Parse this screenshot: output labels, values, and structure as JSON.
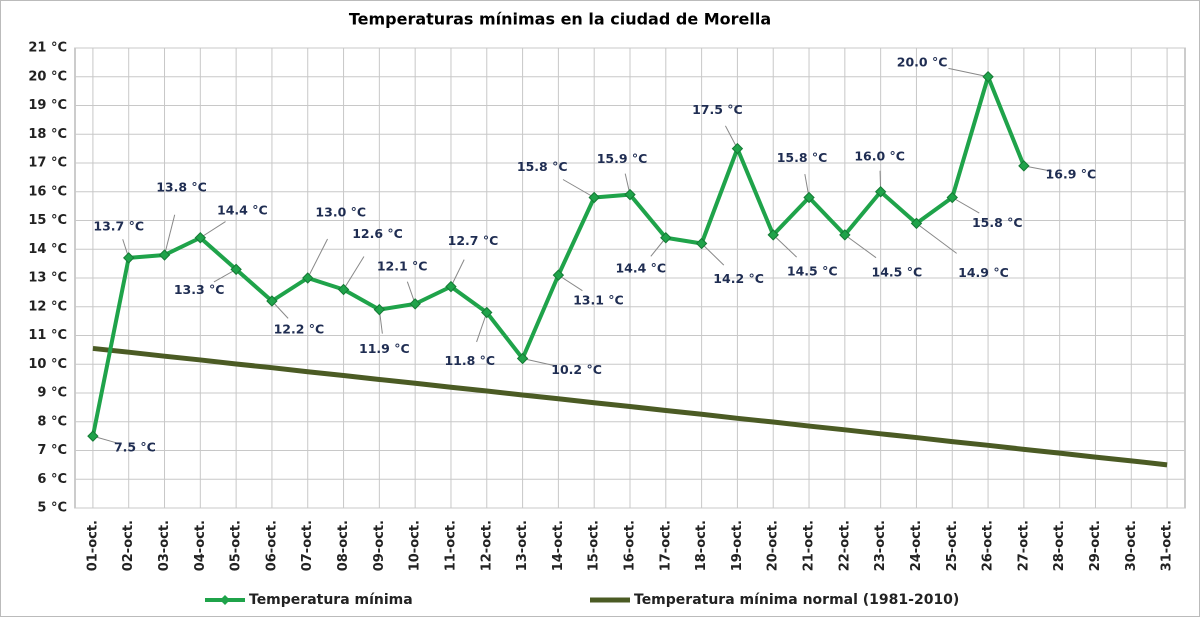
{
  "chart_data": {
    "type": "line",
    "title": "Temperaturas mínimas en la ciudad de Morella",
    "categories": [
      "01-oct.",
      "02-oct.",
      "03-oct.",
      "04-oct.",
      "05-oct.",
      "06-oct.",
      "07-oct.",
      "08-oct.",
      "09-oct.",
      "10-oct.",
      "11-oct.",
      "12-oct.",
      "13-oct.",
      "14-oct.",
      "15-oct.",
      "16-oct.",
      "17-oct.",
      "18-oct.",
      "19-oct.",
      "20-oct.",
      "21-oct.",
      "22-oct.",
      "23-oct.",
      "24-oct.",
      "25-oct.",
      "26-oct.",
      "27-oct.",
      "28-oct.",
      "29-oct.",
      "30-oct.",
      "31-oct."
    ],
    "series": [
      {
        "name": "Temperatura mínima",
        "color": "#1fa34a",
        "values": [
          7.5,
          13.7,
          13.8,
          14.4,
          13.3,
          12.2,
          13.0,
          12.6,
          11.9,
          12.1,
          12.7,
          11.8,
          10.2,
          13.1,
          15.8,
          15.9,
          14.4,
          14.2,
          17.5,
          14.5,
          15.8,
          14.5,
          16.0,
          14.9,
          15.8,
          20.0,
          16.9,
          null,
          null,
          null,
          null
        ],
        "value_labels": [
          "7.5 °C",
          "13.7 °C",
          "13.8 °C",
          "14.4 °C",
          "13.3 °C",
          "12.2 °C",
          "13.0 °C",
          "12.6 °C",
          "11.9 °C",
          "12.1 °C",
          "12.7 °C",
          "11.8 °C",
          "10.2 °C",
          "13.1 °C",
          "15.8 °C",
          "15.9 °C",
          "14.4 °C",
          "14.2 °C",
          "17.5 °C",
          "14.5 °C",
          "15.8 °C",
          "14.5 °C",
          "16.0 °C",
          "14.9 °C",
          "15.8 °C",
          "20.0 °C",
          "16.9 °C",
          null,
          null,
          null,
          null
        ]
      },
      {
        "name": "Temperatura mínima normal (1981-2010)",
        "color": "#4b5b24",
        "values": [
          10.55,
          10.42,
          10.28,
          10.15,
          10.01,
          9.88,
          9.74,
          9.61,
          9.47,
          9.34,
          9.2,
          9.07,
          8.93,
          8.8,
          8.66,
          8.53,
          8.39,
          8.26,
          8.12,
          7.99,
          7.85,
          7.72,
          7.58,
          7.45,
          7.31,
          7.18,
          7.04,
          6.91,
          6.77,
          6.64,
          6.5
        ]
      }
    ],
    "ylim": [
      5,
      21
    ],
    "yticks": [
      {
        "value": 5,
        "label": "5 °C"
      },
      {
        "value": 6,
        "label": "6 °C"
      },
      {
        "value": 7,
        "label": "7 °C"
      },
      {
        "value": 8,
        "label": "8 °C"
      },
      {
        "value": 9,
        "label": "9 °C"
      },
      {
        "value": 10,
        "label": "10 °C"
      },
      {
        "value": 11,
        "label": "11 °C"
      },
      {
        "value": 12,
        "label": "12 °C"
      },
      {
        "value": 13,
        "label": "13 °C"
      },
      {
        "value": 14,
        "label": "14 °C"
      },
      {
        "value": 15,
        "label": "15 °C"
      },
      {
        "value": 16,
        "label": "16 °C"
      },
      {
        "value": 17,
        "label": "17 °C"
      },
      {
        "value": 18,
        "label": "18 °C"
      },
      {
        "value": 19,
        "label": "19 °C"
      },
      {
        "value": 20,
        "label": "20 °C"
      },
      {
        "value": 21,
        "label": "21 °C"
      }
    ],
    "grid": true
  }
}
